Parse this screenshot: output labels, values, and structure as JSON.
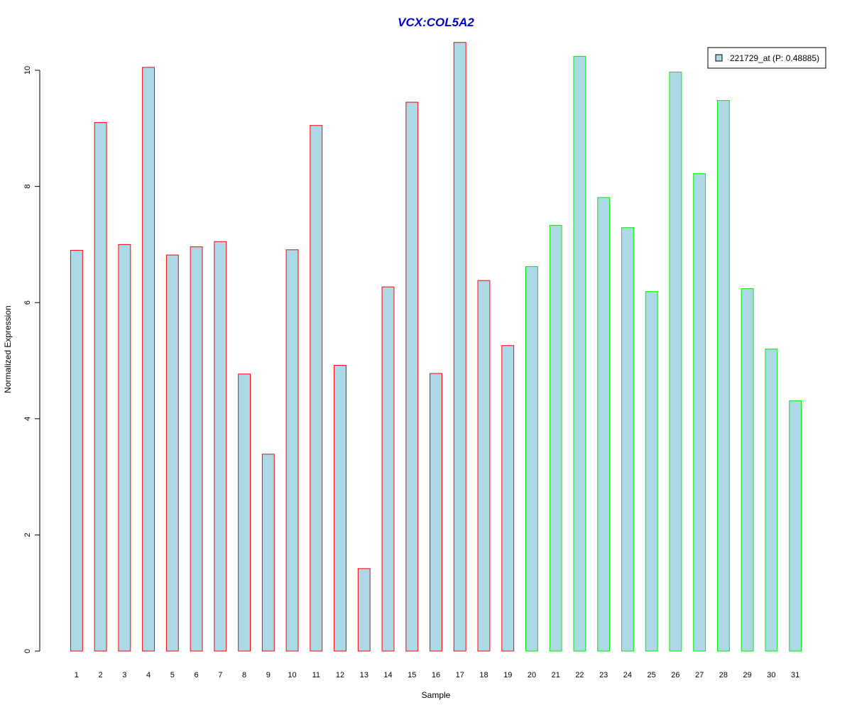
{
  "chart_data": {
    "type": "bar",
    "title": "VCX:COL5A2",
    "xlabel": "Sample",
    "ylabel": "Normalized Expression",
    "ylim": [
      0,
      10.5
    ],
    "yticks": [
      0,
      2,
      4,
      6,
      8,
      10
    ],
    "grid": false,
    "legend_position": "top-right",
    "categories": [
      "1",
      "2",
      "3",
      "4",
      "5",
      "6",
      "7",
      "8",
      "9",
      "10",
      "11",
      "12",
      "13",
      "14",
      "15",
      "16",
      "17",
      "18",
      "19",
      "20",
      "21",
      "22",
      "23",
      "24",
      "25",
      "26",
      "27",
      "28",
      "29",
      "30",
      "31"
    ],
    "series": [
      {
        "name": "221729_at (P: 0.48885)",
        "values": [
          6.9,
          9.1,
          7.0,
          10.05,
          6.82,
          6.96,
          7.05,
          4.77,
          3.39,
          6.91,
          9.05,
          4.92,
          1.42,
          6.27,
          9.45,
          4.78,
          10.48,
          6.38,
          5.26,
          6.62,
          7.33,
          10.24,
          7.81,
          7.29,
          6.19,
          9.97,
          8.22,
          9.48,
          6.24,
          5.2,
          4.31
        ]
      }
    ],
    "group_border_colors": [
      "#ff0000",
      "#ff0000",
      "#ff0000",
      "#ff0000",
      "#ff0000",
      "#ff0000",
      "#ff0000",
      "#ff0000",
      "#ff0000",
      "#ff0000",
      "#ff0000",
      "#ff0000",
      "#ff0000",
      "#ff0000",
      "#ff0000",
      "#ff0000",
      "#ff0000",
      "#ff0000",
      "#ff0000",
      "#00ee00",
      "#00ee00",
      "#00ee00",
      "#00ee00",
      "#00ee00",
      "#00ee00",
      "#00ee00",
      "#00ee00",
      "#00ee00",
      "#00ee00",
      "#00ee00",
      "#00ee00"
    ],
    "colors": {
      "bar_fill": "#add8e6",
      "title": "#0000cc",
      "axis": "#000000"
    }
  }
}
